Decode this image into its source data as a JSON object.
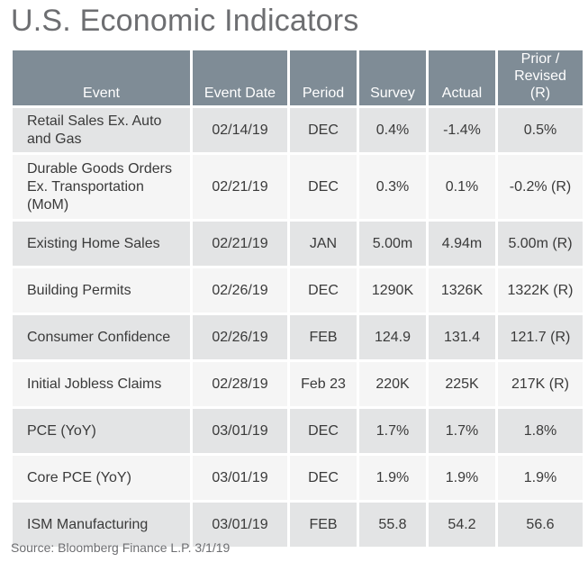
{
  "title": "U.S. Economic Indicators",
  "columns": [
    "Event",
    "Event Date",
    "Period",
    "Survey",
    "Actual",
    "Prior / Revised (R)"
  ],
  "rows": [
    {
      "event": "Retail Sales Ex. Auto and Gas",
      "date": "02/14/19",
      "period": "DEC",
      "survey": "0.4%",
      "actual": "-1.4%",
      "prior": "0.5%"
    },
    {
      "event": "Durable Goods Orders Ex. Transportation (MoM)",
      "date": "02/21/19",
      "period": "DEC",
      "survey": "0.3%",
      "actual": "0.1%",
      "prior": "-0.2% (R)"
    },
    {
      "event": "Existing Home Sales",
      "date": "02/21/19",
      "period": "JAN",
      "survey": "5.00m",
      "actual": "4.94m",
      "prior": "5.00m (R)"
    },
    {
      "event": "Building Permits",
      "date": "02/26/19",
      "period": "DEC",
      "survey": "1290K",
      "actual": "1326K",
      "prior": "1322K (R)"
    },
    {
      "event": "Consumer Confidence",
      "date": "02/26/19",
      "period": "FEB",
      "survey": "124.9",
      "actual": "131.4",
      "prior": "121.7 (R)"
    },
    {
      "event": "Initial Jobless Claims",
      "date": "02/28/19",
      "period": "Feb 23",
      "survey": "220K",
      "actual": "225K",
      "prior": "217K (R)"
    },
    {
      "event": "PCE (YoY)",
      "date": "03/01/19",
      "period": "DEC",
      "survey": "1.7%",
      "actual": "1.7%",
      "prior": "1.8%"
    },
    {
      "event": "Core PCE (YoY)",
      "date": "03/01/19",
      "period": "DEC",
      "survey": "1.9%",
      "actual": "1.9%",
      "prior": "1.9%"
    },
    {
      "event": "ISM Manufacturing",
      "date": "03/01/19",
      "period": "FEB",
      "survey": "55.8",
      "actual": "54.2",
      "prior": "56.6"
    }
  ],
  "source": "Source: Bloomberg Finance L.P. 3/1/19",
  "colors": {
    "header_bg": "#7f8c96",
    "row_shaded": "#e3e4e5",
    "row_plain": "#f5f5f5",
    "title_text": "#6d6e71"
  }
}
